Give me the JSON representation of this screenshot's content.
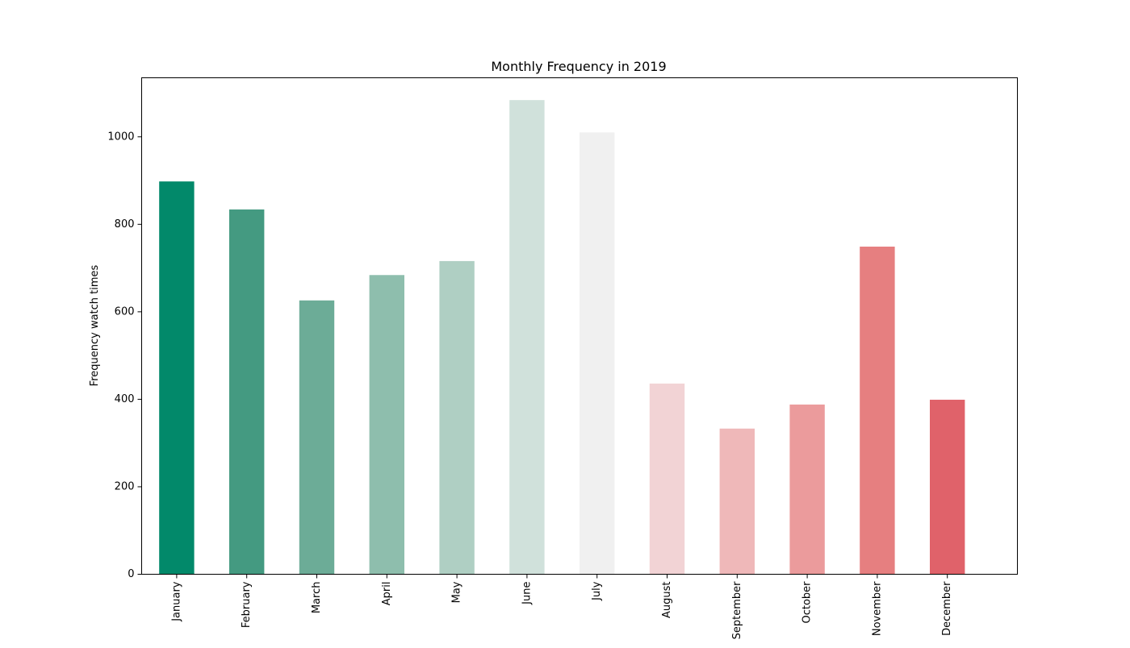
{
  "chart_data": {
    "type": "bar",
    "title": "Monthly Frequency in 2019",
    "xlabel": "",
    "ylabel": "Frequency watch times",
    "categories": [
      "January",
      "February",
      "March",
      "April",
      "May",
      "June",
      "July",
      "August",
      "September",
      "October",
      "November",
      "December"
    ],
    "values": [
      898,
      834,
      626,
      684,
      716,
      1084,
      1010,
      436,
      333,
      388,
      749,
      399
    ],
    "colors": [
      "#02896a",
      "#449a81",
      "#6cac97",
      "#8ebead",
      "#afcfc3",
      "#d0e1db",
      "#f0f0f0",
      "#f2d3d5",
      "#efb8b9",
      "#eb9b9c",
      "#e67f80",
      "#e0626a"
    ],
    "ylim": [
      0,
      1135
    ],
    "yticks": [
      0,
      200,
      400,
      600,
      800,
      1000
    ],
    "grid": false,
    "legend": null
  }
}
